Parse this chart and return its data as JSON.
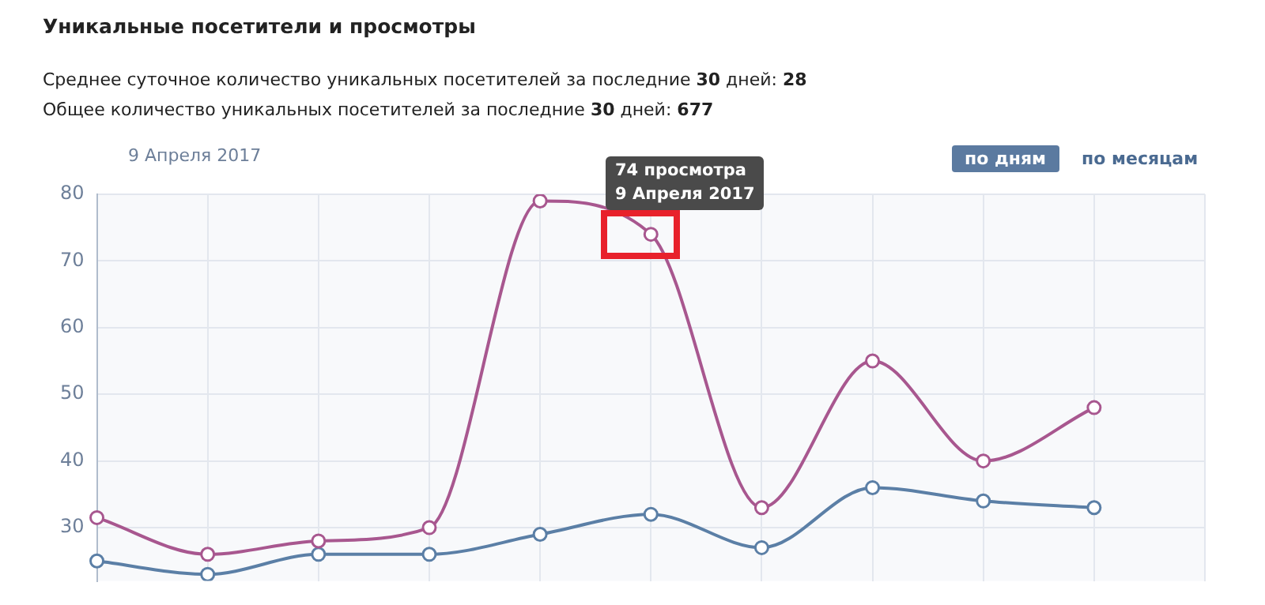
{
  "chart_data": {
    "type": "line",
    "title": "Уникальные посетители и просмотры",
    "subtitle": "Среднее суточное количество уникальных посетителей за последние 30 дней: 28\nОбщее количество уникальных посетителей за последние 30 дней: 677",
    "categories": [
      null,
      null,
      null,
      null,
      null,
      null,
      null,
      null,
      null,
      null,
      null
    ],
    "series": [
      {
        "color": "#a8578f",
        "values": [
          31.5,
          26,
          28,
          30,
          79,
          74,
          33,
          55,
          40,
          48,
          null
        ]
      },
      {
        "color": "#5b7fa6",
        "values": [
          25,
          23,
          26,
          26,
          29,
          32,
          27,
          36,
          34,
          33,
          null
        ]
      }
    ],
    "ylim": [
      22,
      80
    ],
    "yticks": [
      30,
      40,
      50,
      60,
      70,
      80
    ],
    "grid": true,
    "legend": false,
    "marker": "circle",
    "line_style": "solid",
    "annotations": [
      "9 Апреля 2017",
      "по дням",
      "по месяцам",
      "74 просмотра\n9 Апреля 2017"
    ]
  }
}
